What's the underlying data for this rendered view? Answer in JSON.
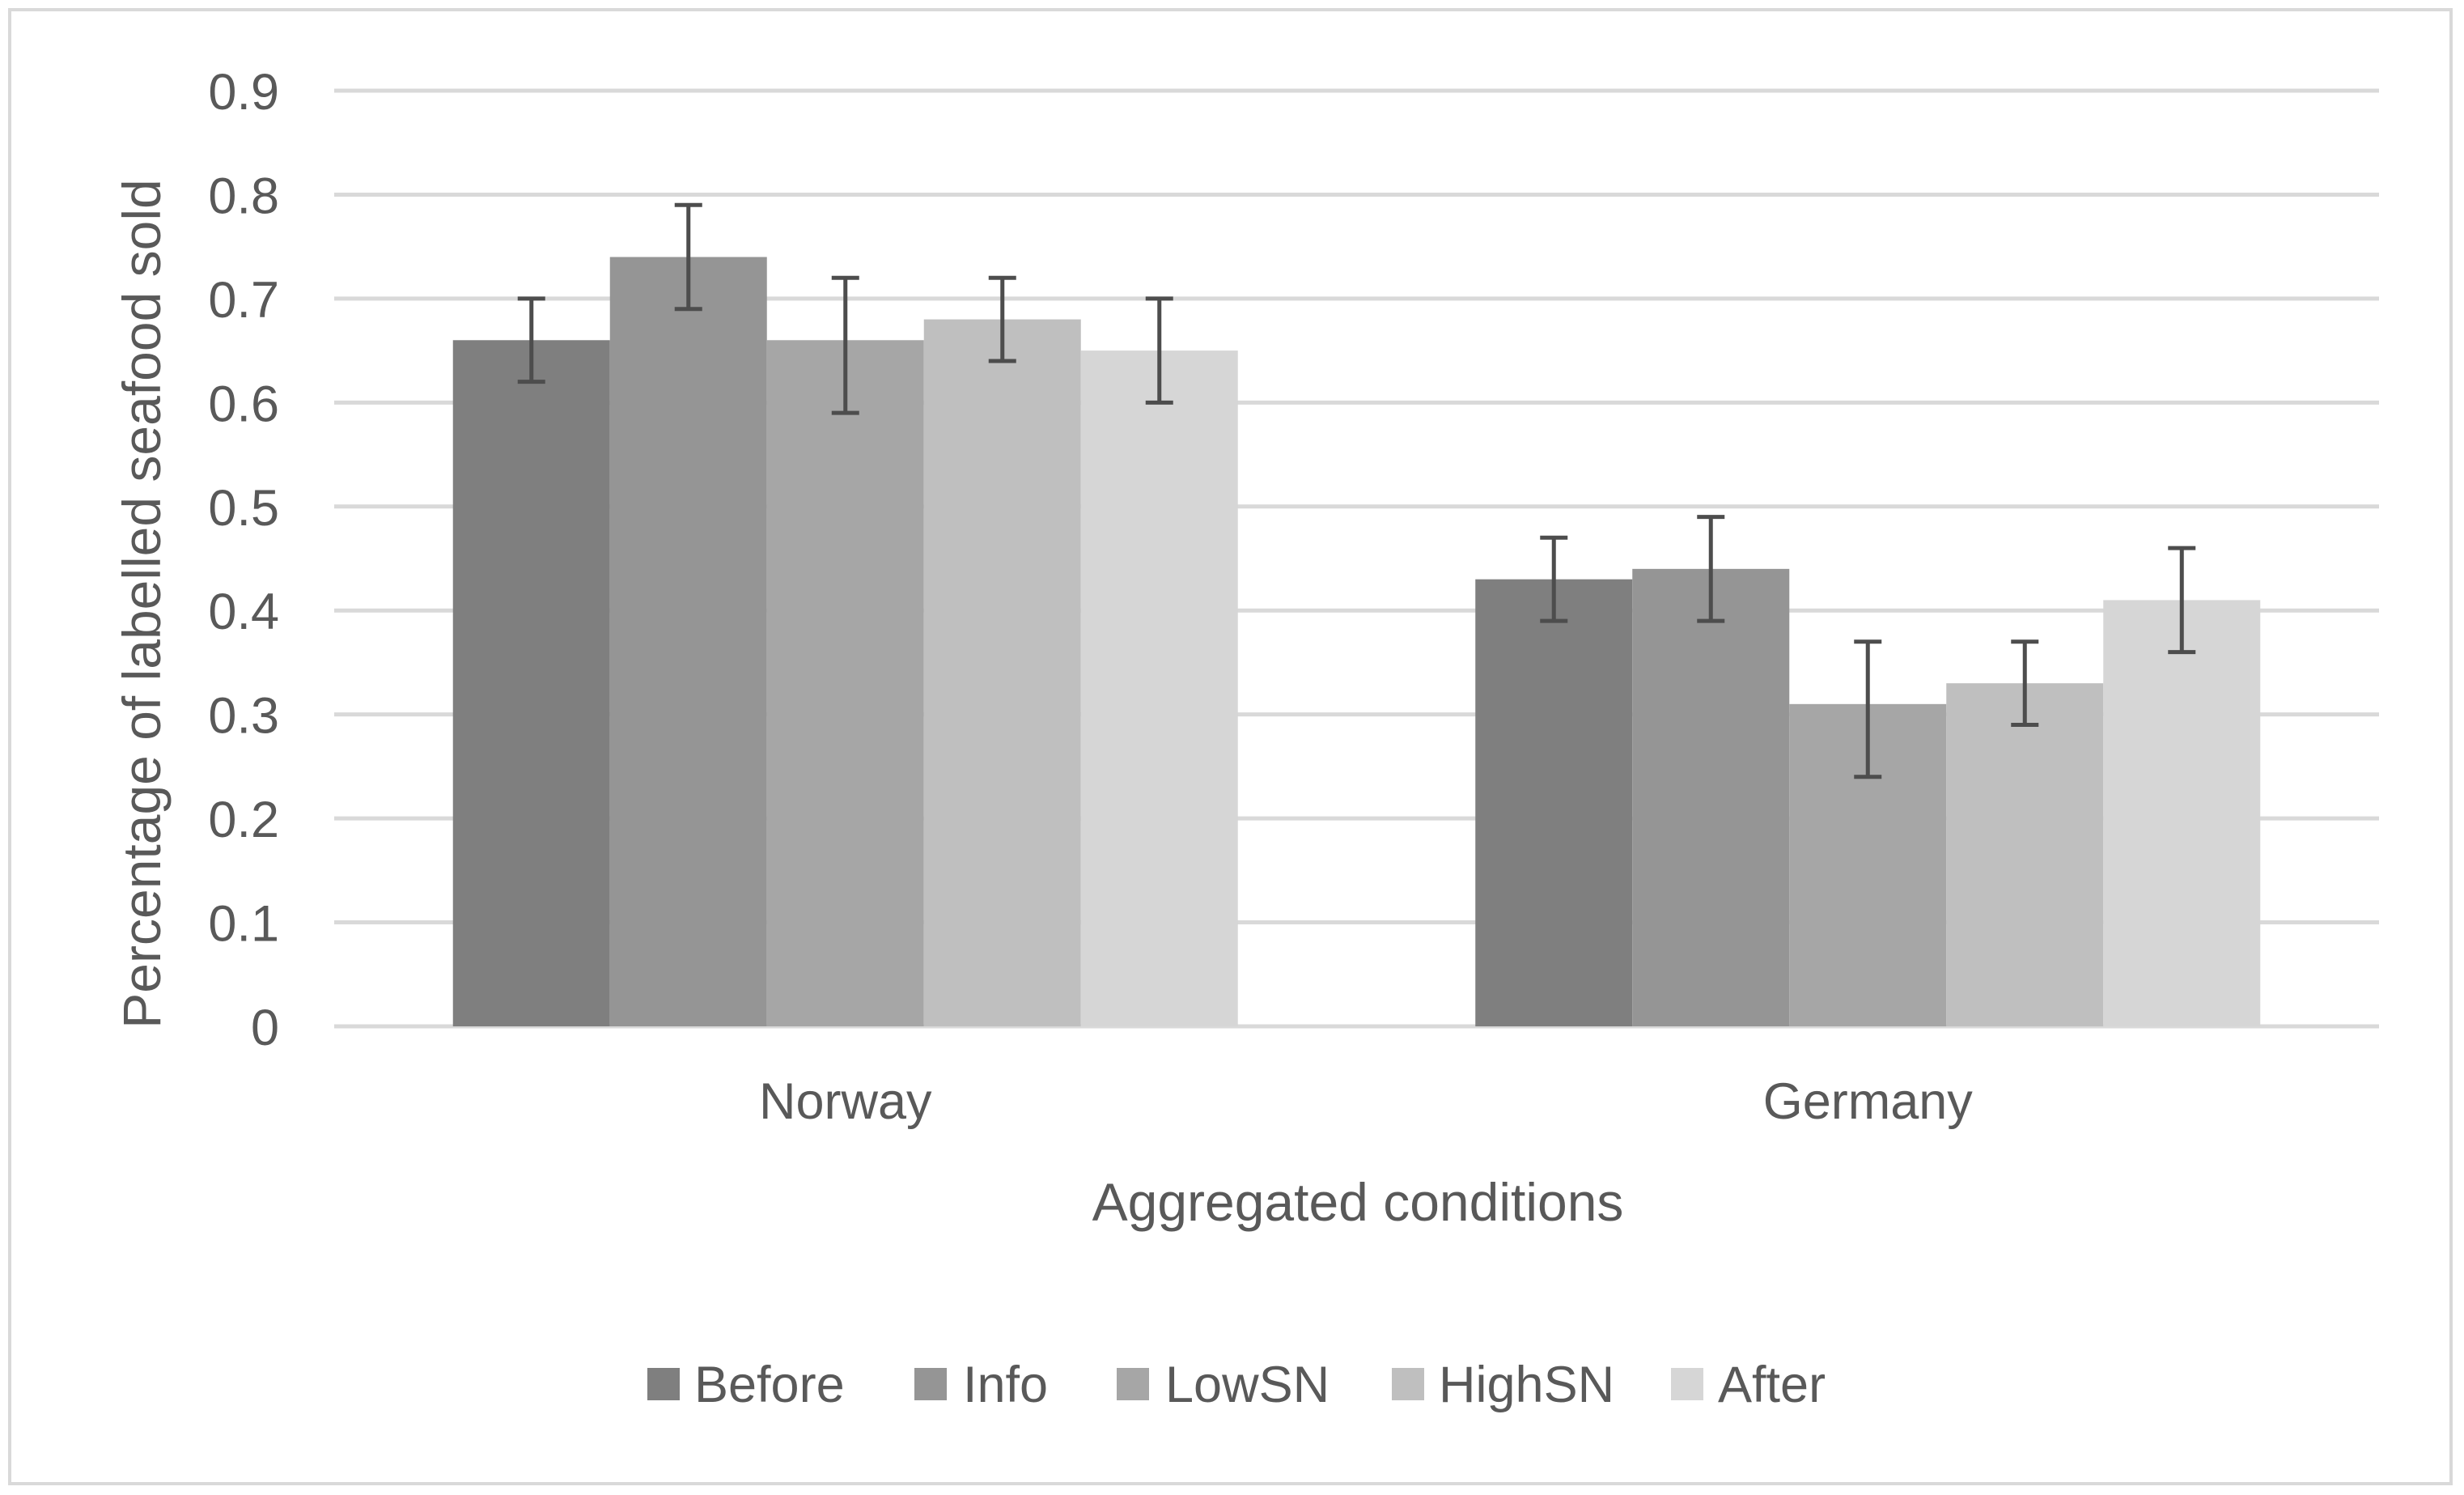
{
  "chart_data": {
    "type": "bar",
    "title": "",
    "xlabel": "Aggregated conditions",
    "ylabel": "Percentage of labelled seafood sold",
    "ylim": [
      0,
      0.9
    ],
    "yticks": [
      "0",
      "0.1",
      "0.2",
      "0.3",
      "0.4",
      "0.5",
      "0.6",
      "0.7",
      "0.8",
      "0.9"
    ],
    "grid": true,
    "legend_position": "bottom",
    "categories": [
      "Norway",
      "Germany"
    ],
    "series": [
      {
        "name": "Before",
        "color": "#7f7f7f",
        "values": [
          0.66,
          0.43
        ],
        "error_low": [
          0.62,
          0.39
        ],
        "error_high": [
          0.7,
          0.47
        ]
      },
      {
        "name": "Info",
        "color": "#959595",
        "values": [
          0.74,
          0.44
        ],
        "error_low": [
          0.69,
          0.39
        ],
        "error_high": [
          0.79,
          0.49
        ]
      },
      {
        "name": "LowSN",
        "color": "#a6a6a6",
        "values": [
          0.66,
          0.31
        ],
        "error_low": [
          0.59,
          0.24
        ],
        "error_high": [
          0.72,
          0.37
        ]
      },
      {
        "name": "HighSN",
        "color": "#bfbfbf",
        "values": [
          0.68,
          0.33
        ],
        "error_low": [
          0.64,
          0.29
        ],
        "error_high": [
          0.72,
          0.37
        ]
      },
      {
        "name": "After",
        "color": "#d6d6d6",
        "values": [
          0.65,
          0.41
        ],
        "error_low": [
          0.6,
          0.36
        ],
        "error_high": [
          0.7,
          0.46
        ]
      }
    ],
    "colors": {
      "gridline": "#d9d9d9",
      "text": "#595959",
      "errorbar": "#4d4d4d"
    }
  }
}
